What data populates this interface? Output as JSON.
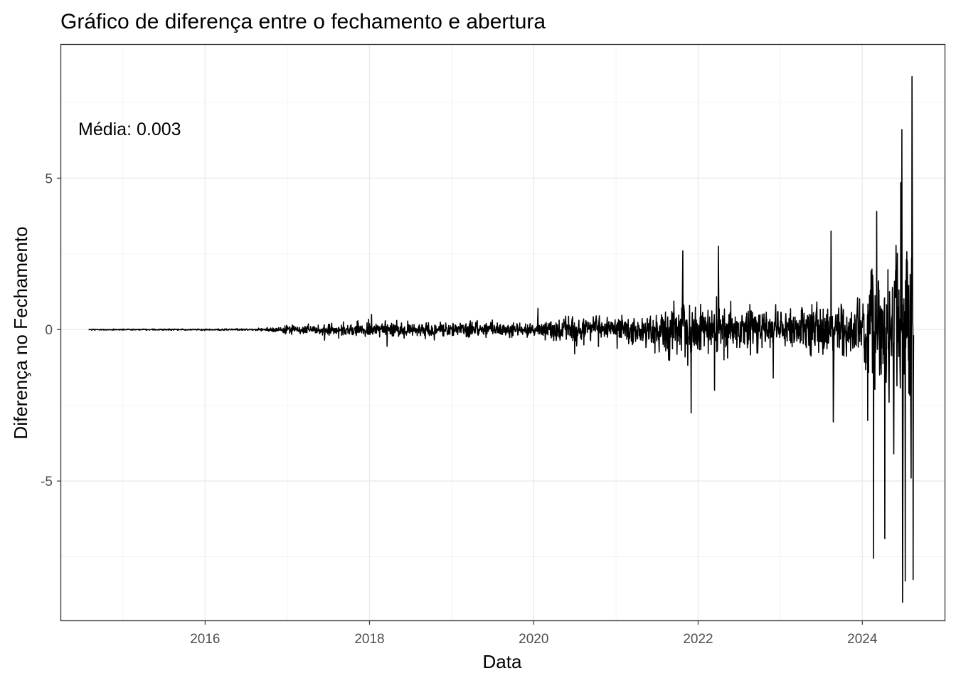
{
  "chart_data": {
    "type": "line",
    "title": "Gráfico de diferença entre o fechamento e abertura",
    "xlabel": "Data",
    "ylabel": "Diferença no Fechamento",
    "annotation": "Média: 0.003",
    "x_range": [
      "2014-08-01",
      "2024-08-16"
    ],
    "xlim": [
      "2014-04-01",
      "2025-01-01"
    ],
    "ylim": [
      -9.6,
      9.4
    ],
    "x_ticks": [
      "2016",
      "2018",
      "2020",
      "2022",
      "2024"
    ],
    "y_ticks": [
      -5,
      0,
      5
    ],
    "grid": true,
    "line_color": "#000000",
    "envelope": [
      {
        "x": "2014-08-01",
        "amplitude": 0.02
      },
      {
        "x": "2016-08-01",
        "amplitude": 0.03
      },
      {
        "x": "2017-01-01",
        "amplitude": 0.15
      },
      {
        "x": "2018-01-01",
        "amplitude": 0.3
      },
      {
        "x": "2019-01-01",
        "amplitude": 0.3
      },
      {
        "x": "2020-01-01",
        "amplitude": 0.25
      },
      {
        "x": "2020-06-01",
        "amplitude": 0.45
      },
      {
        "x": "2021-06-01",
        "amplitude": 0.6
      },
      {
        "x": "2021-11-01",
        "amplitude": 1.1
      },
      {
        "x": "2022-06-01",
        "amplitude": 0.9
      },
      {
        "x": "2023-01-01",
        "amplitude": 0.7
      },
      {
        "x": "2023-06-01",
        "amplitude": 1.0
      },
      {
        "x": "2023-12-01",
        "amplitude": 1.2
      },
      {
        "x": "2024-03-01",
        "amplitude": 2.2
      },
      {
        "x": "2024-08-16",
        "amplitude": 3.2
      }
    ],
    "extremes": [
      {
        "x": "2017-06-15",
        "y": -0.35
      },
      {
        "x": "2018-01-10",
        "y": 0.5
      },
      {
        "x": "2018-03-20",
        "y": -0.55
      },
      {
        "x": "2020-01-20",
        "y": 0.7
      },
      {
        "x": "2020-07-01",
        "y": -0.8
      },
      {
        "x": "2021-10-25",
        "y": 2.6
      },
      {
        "x": "2021-12-01",
        "y": -2.75
      },
      {
        "x": "2022-04-01",
        "y": 2.75
      },
      {
        "x": "2022-03-15",
        "y": -2.0
      },
      {
        "x": "2022-12-01",
        "y": -1.6
      },
      {
        "x": "2023-08-15",
        "y": 3.25
      },
      {
        "x": "2023-08-25",
        "y": -3.05
      },
      {
        "x": "2024-01-25",
        "y": -3.0
      },
      {
        "x": "2024-02-20",
        "y": -7.55
      },
      {
        "x": "2024-03-05",
        "y": 3.9
      },
      {
        "x": "2024-04-10",
        "y": -6.9
      },
      {
        "x": "2024-05-20",
        "y": -4.1
      },
      {
        "x": "2024-06-20",
        "y": 4.85
      },
      {
        "x": "2024-06-25",
        "y": 6.6
      },
      {
        "x": "2024-06-28",
        "y": -9.0
      },
      {
        "x": "2024-07-10",
        "y": -8.3
      },
      {
        "x": "2024-08-05",
        "y": -4.9
      },
      {
        "x": "2024-08-10",
        "y": 8.35
      },
      {
        "x": "2024-08-14",
        "y": -8.25
      }
    ]
  }
}
